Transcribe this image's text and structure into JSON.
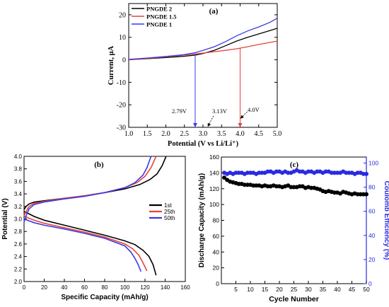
{
  "chart_data": [
    {
      "panel": "(a)",
      "type": "line",
      "xlabel": "Potential (V vs Li/Li⁺)",
      "ylabel": "Current, µA",
      "xlim": [
        1.0,
        5.0
      ],
      "ylim": [
        -30,
        25
      ],
      "xticks": [
        1.0,
        1.5,
        2.0,
        2.5,
        3.0,
        3.5,
        4.0,
        4.5,
        5.0
      ],
      "xtick_labels": [
        "1.0",
        "1.5",
        "2.0",
        "2.5",
        "3.0",
        "3.5",
        "4.0",
        "4.5",
        "5.0"
      ],
      "yticks": [
        -30,
        -20,
        -10,
        0,
        10,
        20
      ],
      "ytick_labels": [
        "-30",
        "-20",
        "-10",
        "0",
        "10",
        "20"
      ],
      "legend_position": "top-left",
      "series": [
        {
          "name": "PNGDE 2",
          "color": "#000000",
          "x": [
            1.0,
            1.5,
            2.0,
            2.5,
            2.8,
            3.0,
            3.3,
            3.6,
            3.9,
            4.2,
            4.5,
            4.8,
            5.0
          ],
          "y": [
            0.0,
            0.5,
            1.0,
            1.6,
            2.1,
            2.8,
            4.2,
            6.2,
            8.3,
            10.0,
            11.5,
            13.0,
            14.0
          ]
        },
        {
          "name": "PNGDE 1.5",
          "color": "#e8413c",
          "x": [
            1.0,
            1.5,
            2.0,
            2.5,
            2.8,
            3.0,
            3.3,
            3.6,
            3.9,
            4.2,
            4.5,
            4.8,
            5.0
          ],
          "y": [
            0.0,
            0.6,
            1.3,
            2.1,
            2.6,
            3.0,
            3.6,
            4.2,
            4.9,
            5.8,
            6.8,
            7.7,
            8.3
          ]
        },
        {
          "name": "PNGDE 1",
          "color": "#3a3ae6",
          "x": [
            1.0,
            1.5,
            2.0,
            2.5,
            2.8,
            3.0,
            3.3,
            3.6,
            3.9,
            4.2,
            4.5,
            4.8,
            5.0
          ],
          "y": [
            0.2,
            0.8,
            1.5,
            2.3,
            3.2,
            4.2,
            5.8,
            8.0,
            10.6,
            12.8,
            14.6,
            16.6,
            18.5
          ]
        }
      ],
      "annotations": [
        {
          "text": "2.79V",
          "x": 2.79,
          "color": "#3a3ae6"
        },
        {
          "text": "3.13V",
          "x": 3.13,
          "color": "#000000"
        },
        {
          "text": "4.0V",
          "x": 4.0,
          "color": "#e8413c"
        }
      ]
    },
    {
      "panel": "(b)",
      "type": "line",
      "xlabel": "Specific Capacity (mAh/g)",
      "ylabel": "Potential (V)",
      "xlim": [
        0,
        160
      ],
      "ylim": [
        2.0,
        4.0
      ],
      "xticks": [
        0,
        20,
        40,
        60,
        80,
        100,
        120,
        140,
        160
      ],
      "xtick_labels": [
        "0",
        "20",
        "40",
        "60",
        "80",
        "100",
        "120",
        "140",
        "160"
      ],
      "yticks": [
        2.0,
        2.2,
        2.4,
        2.6,
        2.8,
        3.0,
        3.2,
        3.4,
        3.6,
        3.8,
        4.0
      ],
      "ytick_labels": [
        "2.0",
        "2.2",
        "2.4",
        "2.6",
        "2.8",
        "3.0",
        "3.2",
        "3.4",
        "3.6",
        "3.8",
        "4.0"
      ],
      "legend_position": "right",
      "series": [
        {
          "name": "1st",
          "color": "#000000",
          "charge_x": [
            0,
            2,
            5,
            10,
            20,
            40,
            60,
            80,
            100,
            115,
            125,
            132,
            137,
            141
          ],
          "charge_y": [
            3.15,
            3.2,
            3.24,
            3.27,
            3.29,
            3.33,
            3.37,
            3.42,
            3.48,
            3.55,
            3.63,
            3.72,
            3.85,
            4.0
          ],
          "discharge_x": [
            0,
            5,
            10,
            20,
            40,
            60,
            80,
            100,
            110,
            118,
            124,
            128,
            131
          ],
          "discharge_y": [
            3.12,
            3.08,
            3.04,
            2.98,
            2.9,
            2.82,
            2.74,
            2.65,
            2.59,
            2.5,
            2.4,
            2.27,
            2.1
          ]
        },
        {
          "name": "25th",
          "color": "#e8413c",
          "charge_x": [
            0,
            2,
            5,
            10,
            20,
            40,
            60,
            80,
            100,
            112,
            120,
            126,
            131
          ],
          "charge_y": [
            3.05,
            3.12,
            3.2,
            3.25,
            3.28,
            3.33,
            3.37,
            3.42,
            3.5,
            3.58,
            3.68,
            3.82,
            4.0
          ],
          "discharge_x": [
            0,
            5,
            10,
            20,
            40,
            60,
            80,
            100,
            108,
            114,
            118,
            122
          ],
          "discharge_y": [
            3.05,
            3.01,
            2.98,
            2.93,
            2.86,
            2.79,
            2.71,
            2.6,
            2.52,
            2.42,
            2.3,
            2.17
          ]
        },
        {
          "name": "50th",
          "color": "#3a3ae6",
          "charge_x": [
            0,
            2,
            5,
            10,
            20,
            40,
            60,
            80,
            100,
            110,
            118,
            122,
            126
          ],
          "charge_y": [
            2.95,
            3.05,
            3.16,
            3.23,
            3.27,
            3.32,
            3.36,
            3.42,
            3.5,
            3.58,
            3.7,
            3.82,
            4.0
          ],
          "discharge_x": [
            0,
            5,
            10,
            20,
            40,
            60,
            80,
            100,
            106,
            110,
            113,
            116
          ],
          "discharge_y": [
            3.0,
            2.97,
            2.94,
            2.9,
            2.84,
            2.77,
            2.69,
            2.57,
            2.47,
            2.37,
            2.28,
            2.16
          ]
        }
      ]
    },
    {
      "panel": "(c)",
      "type": "scatter",
      "xlabel": "Cycle Number",
      "ylabel": "Discharge Capacity (mAh/g)",
      "y2label": "Coulomb Efficiency (%)",
      "xlim": [
        0,
        50
      ],
      "ylim": [
        0,
        160
      ],
      "y2lim": [
        0,
        105
      ],
      "xticks": [
        5,
        10,
        15,
        20,
        25,
        30,
        35,
        40,
        45,
        50
      ],
      "xtick_labels": [
        "5",
        "10",
        "15",
        "20",
        "25",
        "30",
        "35",
        "40",
        "45",
        "50"
      ],
      "yticks": [
        0,
        20,
        40,
        60,
        80,
        100,
        120,
        140,
        160
      ],
      "ytick_labels": [
        "0",
        "20",
        "40",
        "60",
        "80",
        "100",
        "120",
        "140",
        "160"
      ],
      "y2ticks": [
        0,
        20,
        40,
        60,
        80,
        100
      ],
      "y2tick_labels": [
        "0",
        "20",
        "40",
        "60",
        "80",
        "100"
      ],
      "series": [
        {
          "name": "Discharge Capacity",
          "axis": "left",
          "color": "#000000",
          "x": [
            1,
            2,
            3,
            4,
            5,
            6,
            7,
            8,
            9,
            10,
            11,
            12,
            13,
            14,
            15,
            16,
            17,
            18,
            19,
            20,
            21,
            22,
            23,
            24,
            25,
            26,
            27,
            28,
            29,
            30,
            31,
            32,
            33,
            34,
            35,
            36,
            37,
            38,
            39,
            40,
            41,
            42,
            43,
            44,
            45,
            46,
            47,
            48,
            49,
            50
          ],
          "y": [
            134,
            131,
            129,
            128,
            127,
            126,
            126,
            125,
            125,
            125,
            124,
            124,
            124,
            123,
            124,
            123,
            123,
            124,
            123,
            123,
            122,
            123,
            124,
            122,
            122,
            122,
            123,
            123,
            121,
            122,
            121,
            121,
            120,
            119,
            117,
            116,
            117,
            116,
            115,
            115,
            114,
            116,
            115,
            114,
            113,
            114,
            113,
            113,
            113,
            113
          ]
        },
        {
          "name": "Coulomb Efficiency",
          "axis": "right",
          "color": "#2a2ae0",
          "x": [
            1,
            2,
            3,
            4,
            5,
            6,
            7,
            8,
            9,
            10,
            11,
            12,
            13,
            14,
            15,
            16,
            17,
            18,
            19,
            20,
            21,
            22,
            23,
            24,
            25,
            26,
            27,
            28,
            29,
            30,
            31,
            32,
            33,
            34,
            35,
            36,
            37,
            38,
            39,
            40,
            41,
            42,
            43,
            44,
            45,
            46,
            47,
            48,
            49,
            50
          ],
          "y": [
            92,
            91,
            92,
            91,
            92,
            92,
            92,
            91,
            92,
            92,
            92,
            91,
            92,
            92,
            92,
            93,
            93,
            92,
            93,
            93,
            92,
            93,
            92,
            92,
            93,
            94,
            93,
            93,
            92,
            93,
            93,
            92,
            93,
            93,
            92,
            93,
            93,
            92,
            92,
            92,
            92,
            93,
            92,
            92,
            92,
            91,
            92,
            92,
            91,
            91
          ]
        }
      ]
    }
  ]
}
